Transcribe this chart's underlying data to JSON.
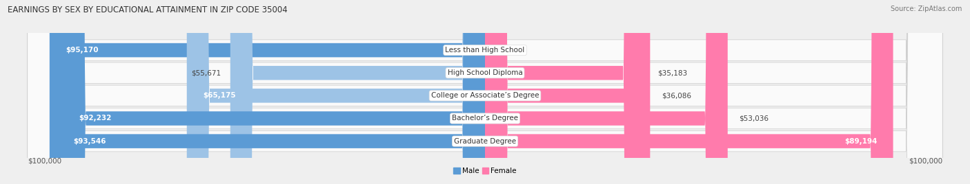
{
  "title": "EARNINGS BY SEX BY EDUCATIONAL ATTAINMENT IN ZIP CODE 35004",
  "source": "Source: ZipAtlas.com",
  "categories": [
    "Less than High School",
    "High School Diploma",
    "College or Associate’s Degree",
    "Bachelor’s Degree",
    "Graduate Degree"
  ],
  "male_values": [
    95170,
    55671,
    65175,
    92232,
    93546
  ],
  "female_values": [
    0,
    35183,
    36086,
    53036,
    89194
  ],
  "male_color_dark": "#5B9BD5",
  "male_color_light": "#9DC3E6",
  "female_color": "#FF7BAC",
  "max_val": 100000,
  "x_label_left": "$100,000",
  "x_label_right": "$100,000",
  "legend_male": "Male",
  "legend_female": "Female",
  "bg_color": "#EFEFEF",
  "row_bg_color": "#FAFAFA",
  "row_alt_color": "#F2F2F2",
  "label_center_bg": "#FFFFFF"
}
